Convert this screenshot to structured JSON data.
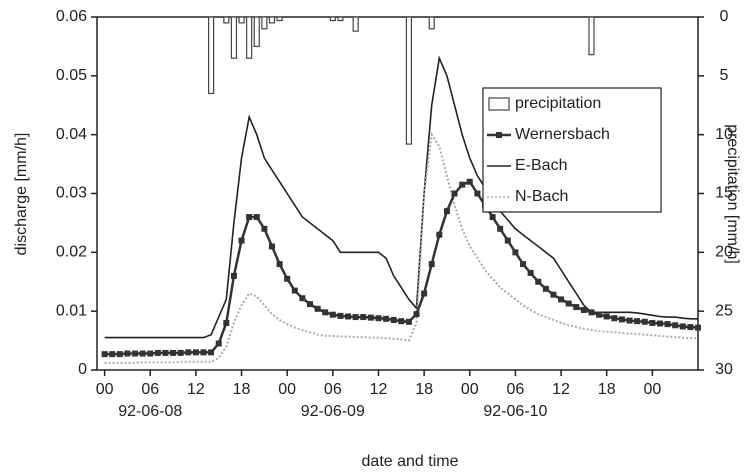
{
  "chart_data": {
    "type": "line",
    "xlabel": "date and time",
    "ylabel": "discharge [mm/h]",
    "y2label": "precipitation [mm/h]",
    "xlim": [
      -1,
      78
    ],
    "xticks": [
      {
        "value": 0,
        "label": "00"
      },
      {
        "value": 6,
        "label": "06"
      },
      {
        "value": 12,
        "label": "12"
      },
      {
        "value": 18,
        "label": "18"
      },
      {
        "value": 24,
        "label": "00"
      },
      {
        "value": 30,
        "label": "06"
      },
      {
        "value": 36,
        "label": "12"
      },
      {
        "value": 42,
        "label": "18"
      },
      {
        "value": 48,
        "label": "00"
      },
      {
        "value": 54,
        "label": "06"
      },
      {
        "value": 60,
        "label": "12"
      },
      {
        "value": 66,
        "label": "18"
      },
      {
        "value": 72,
        "label": "00"
      }
    ],
    "date_labels": [
      {
        "value": 6,
        "label": "92-06-08"
      },
      {
        "value": 30,
        "label": "92-06-09"
      },
      {
        "value": 54,
        "label": "92-06-10"
      }
    ],
    "ylim": [
      0,
      0.06
    ],
    "yticks": [
      0,
      0.01,
      0.02,
      0.03,
      0.04,
      0.05,
      0.06
    ],
    "y2lim": [
      30,
      0
    ],
    "y2ticks": [
      0,
      5,
      10,
      15,
      20,
      25,
      30
    ],
    "legend": "upper-right",
    "x": [
      0,
      1,
      2,
      3,
      4,
      5,
      6,
      7,
      8,
      9,
      10,
      11,
      12,
      13,
      14,
      15,
      16,
      17,
      18,
      19,
      20,
      21,
      22,
      23,
      24,
      25,
      26,
      27,
      28,
      29,
      30,
      31,
      32,
      33,
      34,
      35,
      36,
      37,
      38,
      39,
      40,
      41,
      42,
      43,
      44,
      45,
      46,
      47,
      48,
      49,
      50,
      51,
      52,
      53,
      54,
      55,
      56,
      57,
      58,
      59,
      60,
      61,
      62,
      63,
      64,
      65,
      66,
      67,
      68,
      69,
      70,
      71,
      72,
      73,
      74,
      75,
      76,
      77,
      78
    ],
    "series": [
      {
        "name": "precipitation",
        "type": "bar",
        "axis": "y2",
        "color": "#444444",
        "x": [
          14,
          16,
          17,
          18,
          19,
          20,
          21,
          22,
          23,
          30,
          31,
          33,
          40,
          43,
          64
        ],
        "values": [
          6.5,
          0.5,
          3.5,
          0.5,
          3.5,
          2.5,
          1,
          0.5,
          0.3,
          0.3,
          0.3,
          1.2,
          10.8,
          1,
          3.2
        ]
      },
      {
        "name": "Wernersbach",
        "color": "#333333",
        "marker": "square",
        "values": [
          0.0027,
          0.0027,
          0.0027,
          0.0028,
          0.0028,
          0.0028,
          0.0028,
          0.0029,
          0.0029,
          0.0029,
          0.0029,
          0.003,
          0.003,
          0.003,
          0.003,
          0.0045,
          0.008,
          0.016,
          0.022,
          0.026,
          0.026,
          0.024,
          0.021,
          0.018,
          0.0155,
          0.0135,
          0.0122,
          0.0112,
          0.0104,
          0.0098,
          0.0094,
          0.0092,
          0.0091,
          0.009,
          0.009,
          0.0089,
          0.0088,
          0.0087,
          0.0085,
          0.0083,
          0.0082,
          0.0095,
          0.013,
          0.018,
          0.023,
          0.027,
          0.03,
          0.0315,
          0.032,
          0.03,
          0.028,
          0.026,
          0.024,
          0.022,
          0.02,
          0.018,
          0.0165,
          0.015,
          0.0138,
          0.0128,
          0.012,
          0.0113,
          0.0107,
          0.0102,
          0.0098,
          0.0094,
          0.0091,
          0.0088,
          0.0086,
          0.0084,
          0.0083,
          0.0082,
          0.008,
          0.0079,
          0.0078,
          0.0076,
          0.0074,
          0.0073,
          0.0072
        ]
      },
      {
        "name": "E-Bach",
        "color": "#222222",
        "values": [
          0.0055,
          0.0055,
          0.0055,
          0.0055,
          0.0055,
          0.0055,
          0.0055,
          0.0055,
          0.0055,
          0.0055,
          0.0055,
          0.0055,
          0.0055,
          0.0055,
          0.006,
          0.009,
          0.012,
          0.025,
          0.036,
          0.043,
          0.04,
          0.036,
          0.034,
          0.032,
          0.03,
          0.028,
          0.026,
          0.025,
          0.024,
          0.023,
          0.022,
          0.02,
          0.02,
          0.02,
          0.02,
          0.02,
          0.02,
          0.019,
          0.016,
          0.014,
          0.012,
          0.0105,
          0.03,
          0.045,
          0.053,
          0.05,
          0.045,
          0.04,
          0.036,
          0.033,
          0.031,
          0.029,
          0.027,
          0.0255,
          0.024,
          0.023,
          0.022,
          0.021,
          0.02,
          0.019,
          0.017,
          0.015,
          0.013,
          0.011,
          0.0098,
          0.0098,
          0.0098,
          0.0098,
          0.0098,
          0.0098,
          0.0097,
          0.0095,
          0.0093,
          0.0091,
          0.009,
          0.009,
          0.0088,
          0.0087,
          0.0087
        ]
      },
      {
        "name": "N-Bach",
        "color": "#aaaaaa",
        "dash": true,
        "values": [
          0.0012,
          0.0012,
          0.0012,
          0.0012,
          0.0012,
          0.0013,
          0.0013,
          0.0013,
          0.0013,
          0.0013,
          0.0014,
          0.0014,
          0.0014,
          0.0014,
          0.0014,
          0.002,
          0.004,
          0.008,
          0.011,
          0.013,
          0.0125,
          0.011,
          0.0095,
          0.0085,
          0.0078,
          0.0072,
          0.0068,
          0.0064,
          0.006,
          0.0058,
          0.0058,
          0.0057,
          0.0057,
          0.0056,
          0.0056,
          0.0055,
          0.0055,
          0.0054,
          0.0053,
          0.0052,
          0.005,
          0.008,
          0.03,
          0.04,
          0.038,
          0.033,
          0.028,
          0.024,
          0.021,
          0.019,
          0.017,
          0.0155,
          0.014,
          0.013,
          0.012,
          0.011,
          0.0102,
          0.0095,
          0.009,
          0.0085,
          0.008,
          0.0076,
          0.0073,
          0.007,
          0.0068,
          0.0066,
          0.0065,
          0.0064,
          0.0063,
          0.0062,
          0.0061,
          0.006,
          0.0059,
          0.0058,
          0.0057,
          0.0056,
          0.0055,
          0.0054,
          0.0054
        ]
      }
    ]
  }
}
